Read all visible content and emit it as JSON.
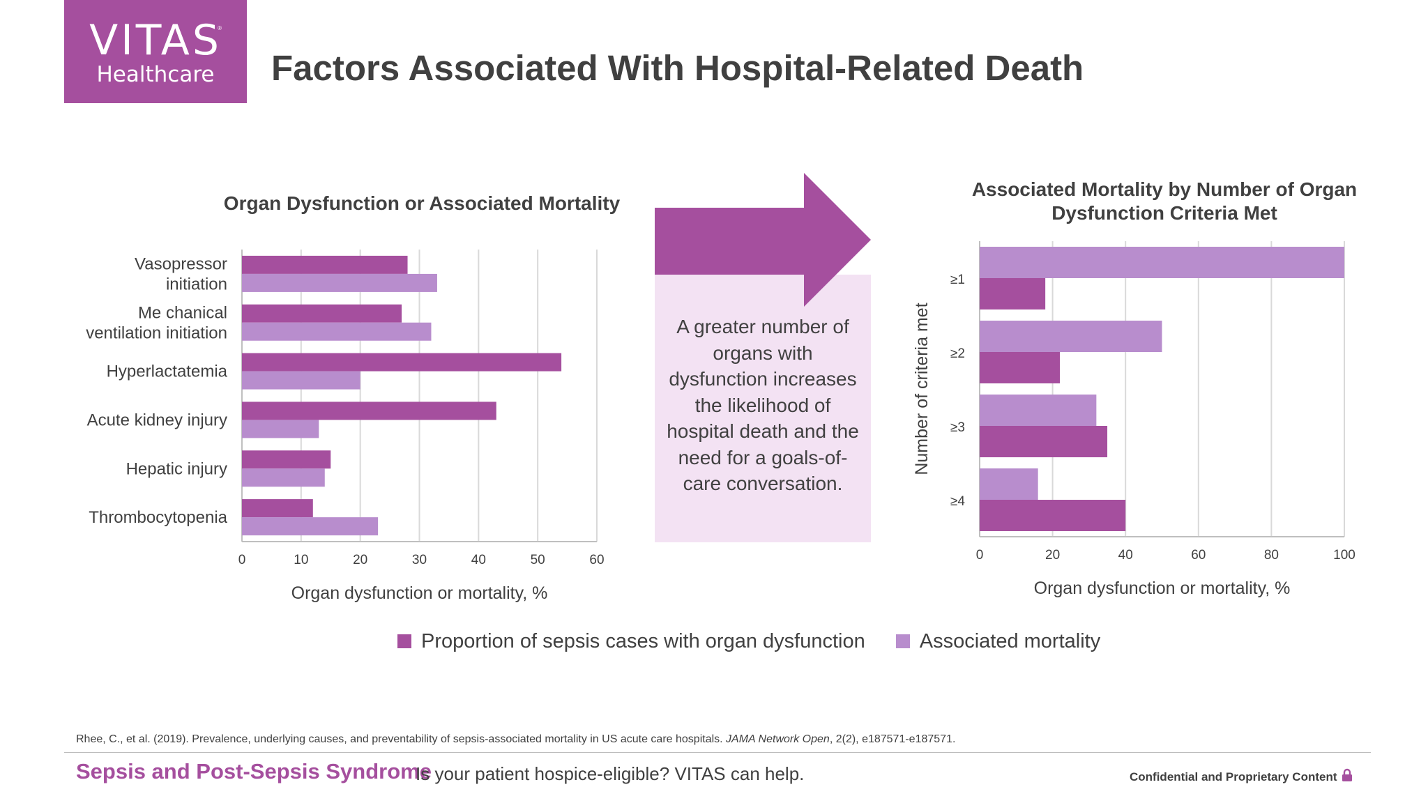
{
  "logo": {
    "line1": "VITAS",
    "line2": "Healthcare",
    "mark": "®"
  },
  "title": "Factors Associated With Hospital-Related Death",
  "colors": {
    "brand": "#a54f9e",
    "dysfunction": "#a54f9e",
    "mortality": "#b88dcd",
    "callout_bg": "#f3e2f3",
    "grid": "#d9d9d9"
  },
  "callout": {
    "text": "A greater number of organs with dysfunction increases the likelihood of hospital death and the need for a goals-of-care conversation."
  },
  "legend": [
    {
      "label": "Proportion of sepsis cases with organ dysfunction"
    },
    {
      "label": "Associated mortality"
    }
  ],
  "chart_data": [
    {
      "type": "bar",
      "orientation": "horizontal",
      "title": "Organ Dysfunction or Associated Mortality",
      "xlabel": "Organ dysfunction or mortality, %",
      "ylabel": "",
      "xlim": [
        0,
        60
      ],
      "xticks": [
        "0",
        "10",
        "20",
        "30",
        "40",
        "50",
        "60"
      ],
      "grid": "vertical",
      "categories": [
        [
          "Vasopressor",
          "initiation"
        ],
        [
          "Me chanical",
          "ventilation initiation"
        ],
        [
          "Hyperlactatemia"
        ],
        [
          "Acute kidney injury"
        ],
        [
          "Hepatic injury"
        ],
        [
          "Thrombocytopenia"
        ]
      ],
      "series": [
        {
          "name": "Proportion of sepsis cases with organ dysfunction",
          "values": [
            28,
            27,
            54,
            43,
            15,
            12
          ]
        },
        {
          "name": "Associated mortality",
          "values": [
            33,
            32,
            20,
            13,
            14,
            23
          ]
        }
      ]
    },
    {
      "type": "bar",
      "orientation": "horizontal",
      "title": "Associated Mortality by Number of Organ Dysfunction Criteria Met",
      "xlabel": "Organ dysfunction or mortality, %",
      "ylabel": "Number of criteria met",
      "xlim": [
        0,
        100
      ],
      "xticks": [
        "0",
        "20",
        "40",
        "60",
        "80",
        "100"
      ],
      "grid": "vertical",
      "categories": [
        [
          "≥1"
        ],
        [
          "≥2"
        ],
        [
          "≥3"
        ],
        [
          "≥4"
        ]
      ],
      "series": [
        {
          "name": "Associated mortality",
          "values": [
            100,
            50,
            32,
            16
          ]
        },
        {
          "name": "Proportion of sepsis cases with organ dysfunction",
          "values": [
            18,
            22,
            35,
            40
          ]
        }
      ]
    }
  ],
  "footer": {
    "citation_pre": "Rhee, C., et al. (2019). Prevalence, underlying causes, and preventability of sepsis-associated mortality in US acute care hospitals. ",
    "citation_journal": "JAMA Network Open",
    "citation_post": ", 2(2), e187571-e187571.",
    "brand": "Sepsis and Post-Sepsis Syndrome",
    "tagline": "Is your patient hospice-eligible? VITAS can help.",
    "confidential": "Confidential and Proprietary Content"
  }
}
